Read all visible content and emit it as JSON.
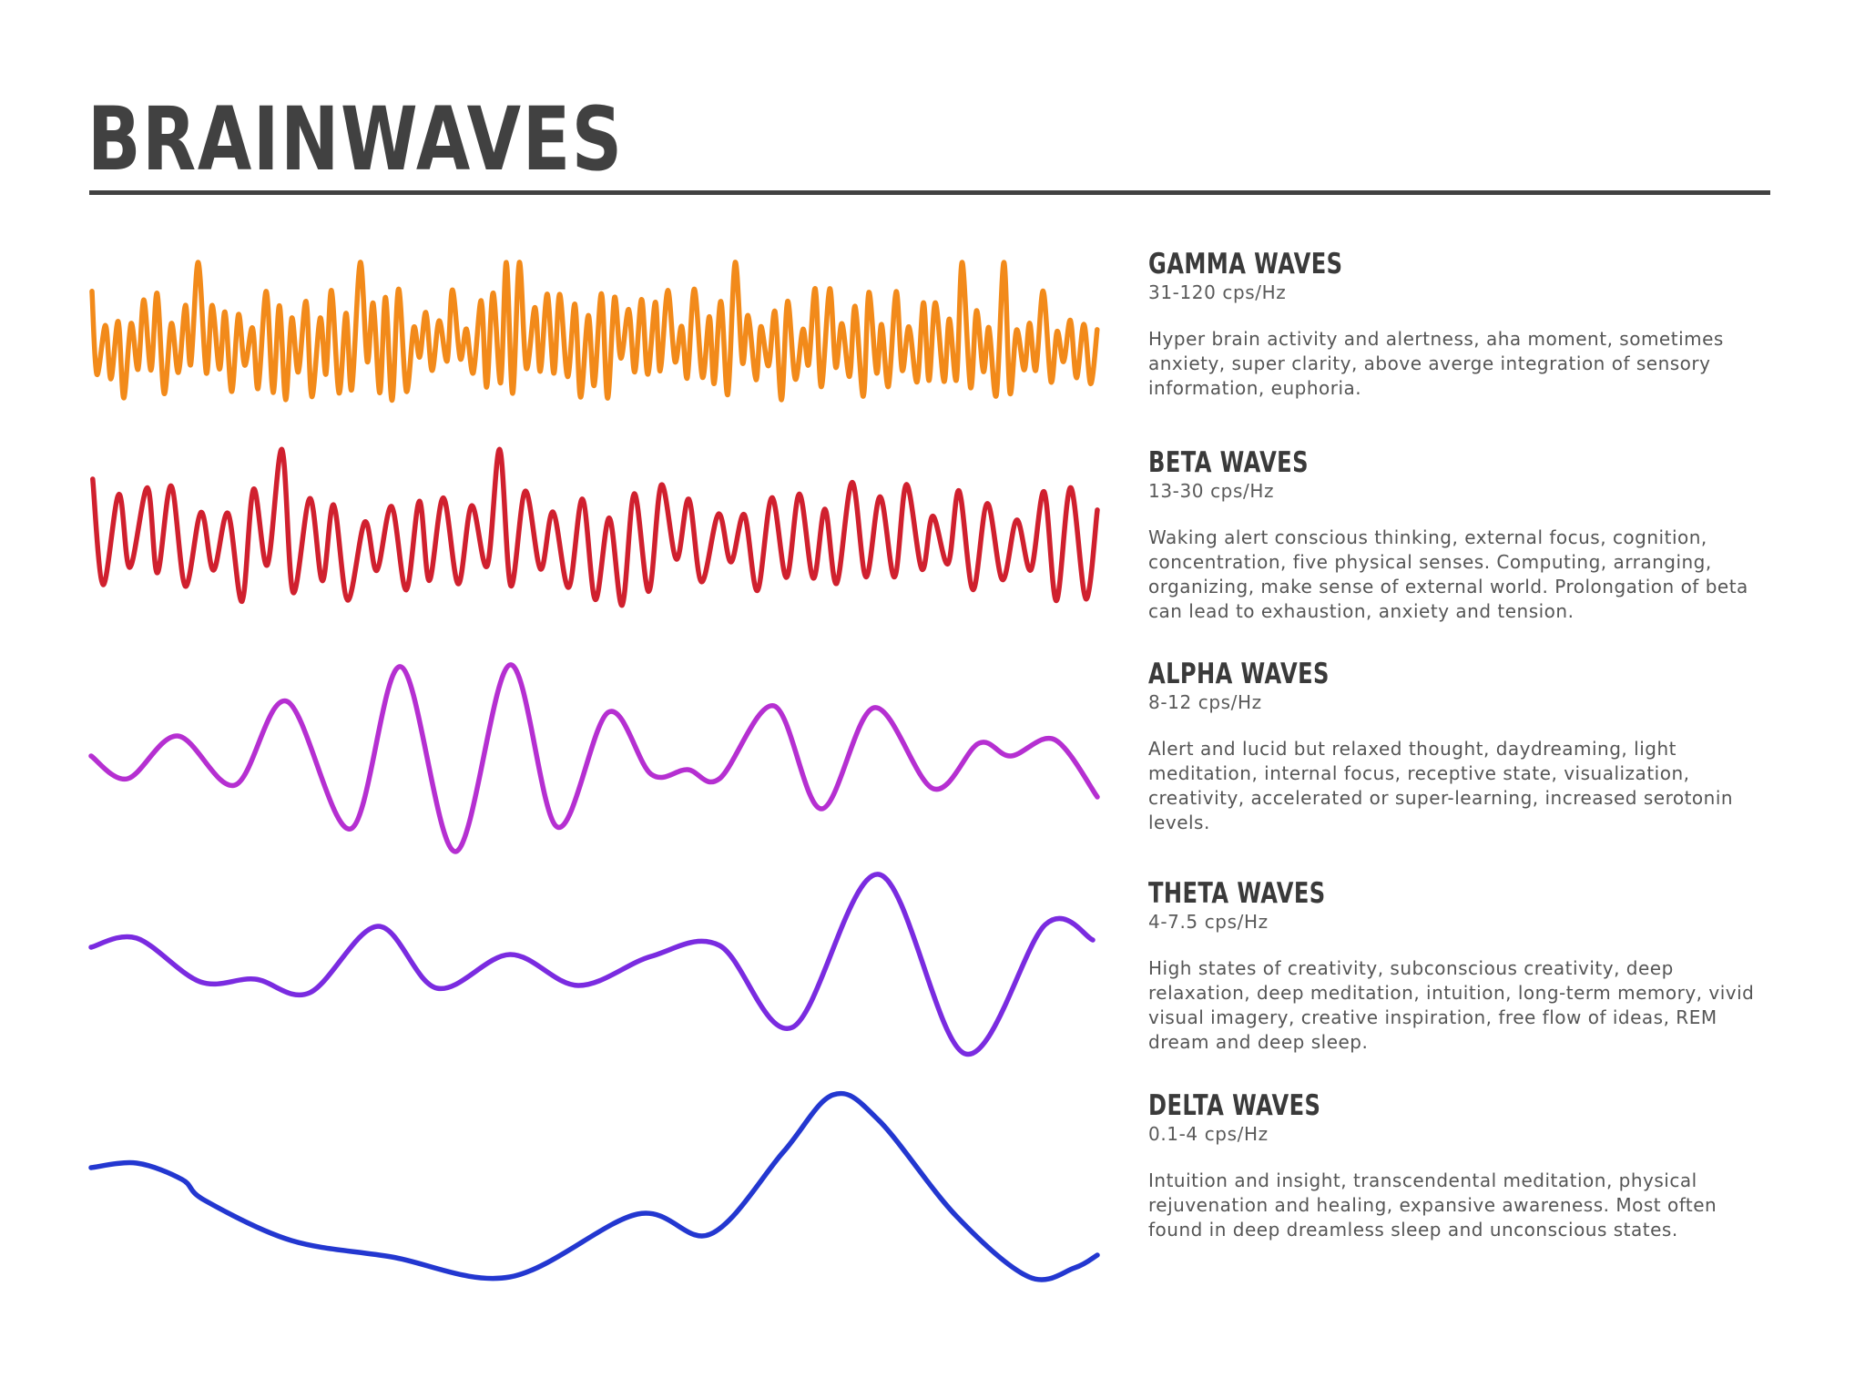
{
  "title": "BRAINWAVES",
  "waves": [
    {
      "name": "GAMMA WAVES",
      "frequency": "31-120 cps/Hz",
      "description": "Hyper brain activity and alertness, aha moment, sometimes anxiety, super clarity, above averge integration of sensory information, euphoria.",
      "color": "#F28A1A"
    },
    {
      "name": "BETA WAVES",
      "frequency": "13-30 cps/Hz",
      "description": "Waking alert conscious thinking, external focus, cognition, concentration, five physical senses. Computing, arranging, organizing, make sense of external world. Prolongation of beta can lead to exhaustion, anxiety and tension.",
      "color": "#D0202E"
    },
    {
      "name": "ALPHA WAVES",
      "frequency": "8-12 cps/Hz",
      "description": "Alert and lucid but relaxed thought, daydreaming, light meditation, internal focus, receptive state, visualization, creativity, accelerated or super-learning, increased serotonin levels.",
      "color": "#B52FD1"
    },
    {
      "name": "THETA WAVES",
      "frequency": "4-7.5 cps/Hz",
      "description": "High states of creativity, subconscious creativity, deep relaxation, deep meditation, intuition, long-term memory, vivid visual imagery, creative inspiration, free flow of ideas, REM dream and deep sleep.",
      "color": "#7A2BE0"
    },
    {
      "name": "DELTA WAVES",
      "frequency": "0.1-4 cps/Hz",
      "description": "Intuition and insight, transcendental meditation, physical rejuvenation and healing, expansive awareness. Most often found in deep dreamless sleep and unconscious states.",
      "color": "#2337D0"
    }
  ]
}
